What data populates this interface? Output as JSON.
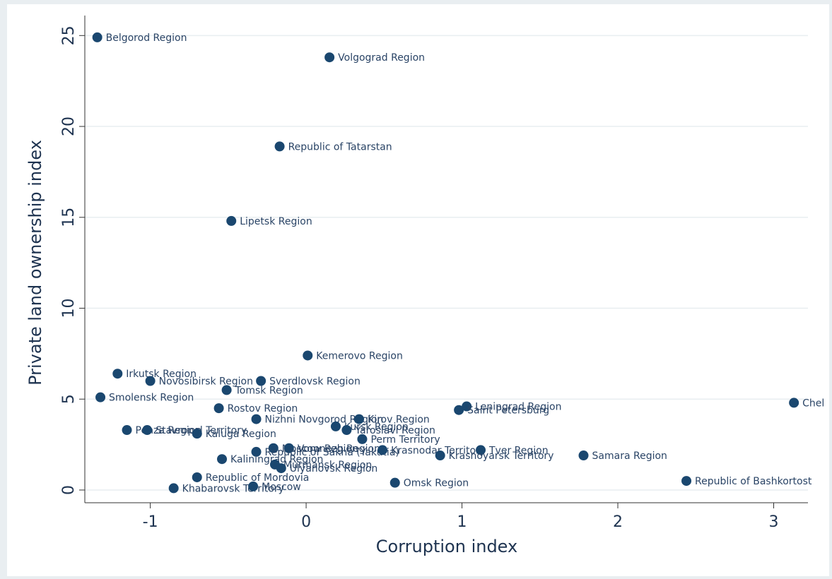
{
  "chart_data": {
    "type": "scatter",
    "x_label": "Corruption index",
    "y_label": "Private land ownership index",
    "color": "#1a476f",
    "grid": true,
    "xlim": [
      -1.42,
      3.22
    ],
    "ylim": [
      -0.7,
      26.1
    ],
    "xticks": [
      -1,
      0,
      1,
      2,
      3
    ],
    "yticks": [
      0,
      5,
      10,
      15,
      20,
      25
    ],
    "labels": [
      "Belgorod Region",
      "Volgograd Region",
      "Republic of Tatarstan",
      "Lipetsk Region",
      "Kemerovo Region",
      "Irkutsk Region",
      "Novosibirsk Region",
      "Sverdlovsk Region",
      "Tomsk Region",
      "Smolensk Region",
      "Rostov Region",
      "Leningrad Region",
      "Saint Petersburg",
      "Chel",
      "Nizhni Novgorod Region",
      "Kirov Region",
      "Kursk Region",
      "Yaroslavl Region",
      "Perm Territory",
      "Penza Region",
      "Stavropol Territory",
      "Kaluga Region",
      "Moscow Region",
      "Voronezh Region",
      "Republic of Sakha (Yakutia)",
      "Krasnodar Territory",
      "Tver Region",
      "Krasnoyarsk Territory",
      "Samara Region",
      "Kaliningrad Region",
      "Murmansk Region",
      "Ulyanovsk Region",
      "Republic of Mordovia",
      "Omsk Region",
      "Republic of Bashkortost",
      "Khabarovsk Territory",
      "Moscow"
    ],
    "x": [
      -1.34,
      0.15,
      -0.17,
      -0.48,
      0.01,
      -1.21,
      -1.0,
      -0.29,
      -0.51,
      -1.32,
      -0.56,
      1.03,
      0.98,
      3.13,
      -0.32,
      0.34,
      0.19,
      0.26,
      0.36,
      -1.15,
      -1.02,
      -0.7,
      -0.21,
      -0.11,
      -0.32,
      0.49,
      1.12,
      0.86,
      1.78,
      -0.54,
      -0.2,
      -0.16,
      -0.7,
      0.57,
      2.44,
      -0.85,
      -0.34
    ],
    "y": [
      24.9,
      23.8,
      18.9,
      14.8,
      7.4,
      6.4,
      6.0,
      6.0,
      5.5,
      5.1,
      4.5,
      4.6,
      4.4,
      4.8,
      3.9,
      3.9,
      3.5,
      3.3,
      2.8,
      3.3,
      3.3,
      3.1,
      2.3,
      2.3,
      2.1,
      2.2,
      2.2,
      1.9,
      1.9,
      1.7,
      1.4,
      1.2,
      0.7,
      0.4,
      0.5,
      0.1,
      0.2
    ]
  }
}
